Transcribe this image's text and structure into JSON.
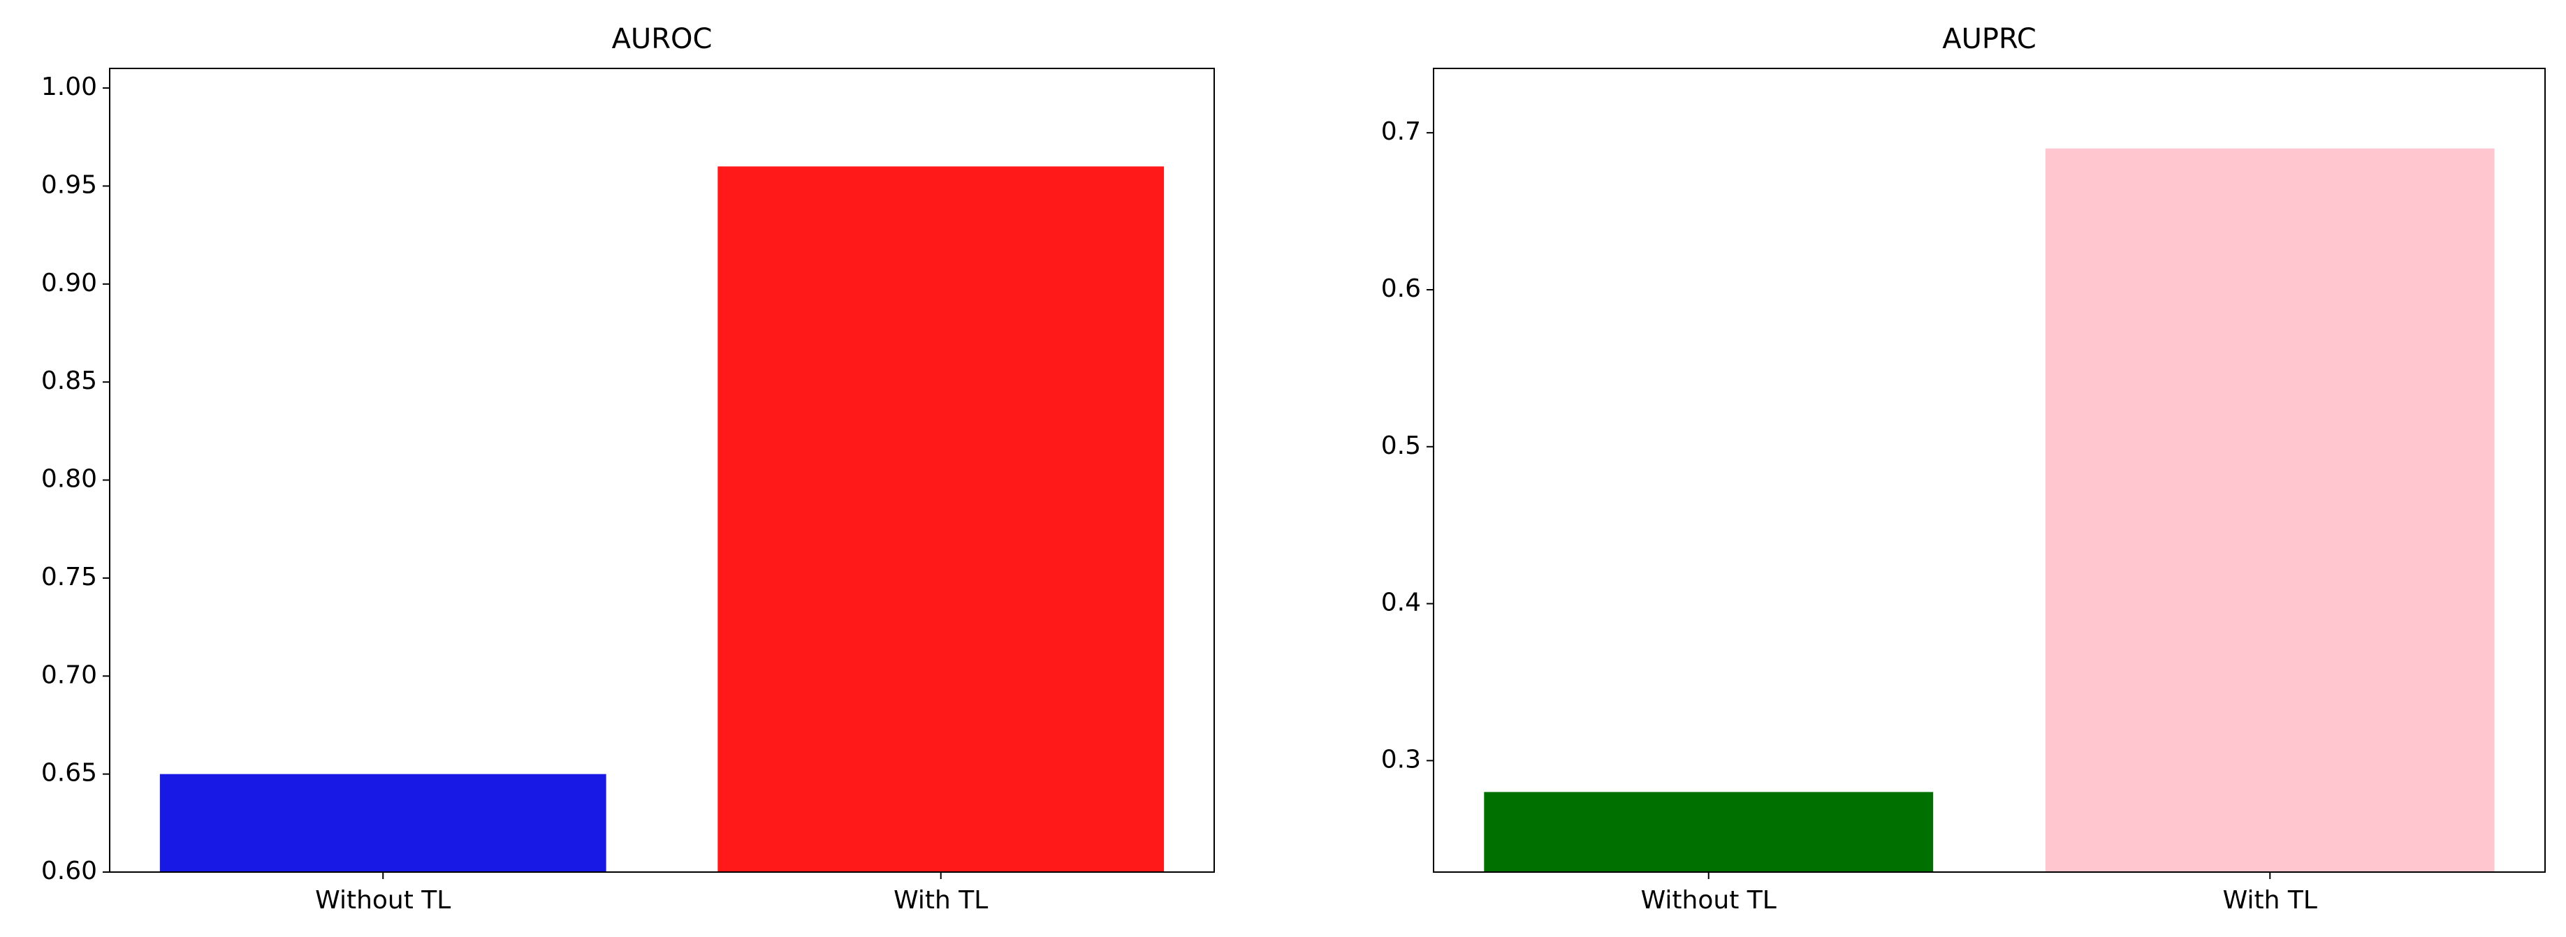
{
  "chart_data": [
    {
      "type": "bar",
      "title": "AUROC",
      "categories": [
        "Without TL",
        "With TL"
      ],
      "values": [
        0.65,
        0.96
      ],
      "colors": [
        "#1919e6",
        "#ff1919"
      ],
      "ylim": [
        0.6,
        1.01
      ],
      "yticks": [
        {
          "value": 0.6,
          "label": "0.60"
        },
        0.65,
        {
          "value": 0.7,
          "label": "0.70"
        },
        0.75,
        {
          "value": 0.8,
          "label": "0.80"
        },
        0.85,
        {
          "value": 0.9,
          "label": "0.90"
        },
        0.95,
        {
          "value": 1.0,
          "label": "1.00"
        }
      ]
    },
    {
      "type": "bar",
      "title": "AUPRC",
      "categories": [
        "Without TL",
        "With TL"
      ],
      "values": [
        0.28,
        0.69
      ],
      "colors": [
        "#007100",
        "#ffc6d0"
      ],
      "ylim": [
        0.229,
        0.741
      ],
      "yticks": [
        0.3,
        0.4,
        0.5,
        0.6,
        0.7
      ]
    }
  ]
}
